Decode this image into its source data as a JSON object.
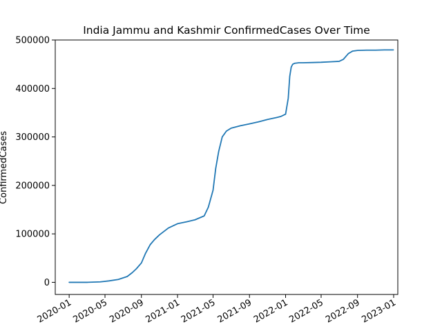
{
  "chart_data": {
    "type": "line",
    "title": "India Jammu and Kashmir ConfirmedCases Over Time",
    "xlabel": "",
    "ylabel": "ConfirmedCases",
    "x_range": [
      "2019-11-15",
      "2023-01-15"
    ],
    "ylim": [
      -25000,
      500000
    ],
    "x_ticks": [
      "2020-01",
      "2020-05",
      "2020-09",
      "2021-01",
      "2021-05",
      "2021-09",
      "2022-01",
      "2022-05",
      "2022-09",
      "2023-01"
    ],
    "y_ticks": [
      0,
      100000,
      200000,
      300000,
      400000,
      500000
    ],
    "y_tick_labels": [
      "0",
      "100000",
      "200000",
      "300000",
      "400000",
      "500000"
    ],
    "grid": false,
    "line_color": "#1f77b4",
    "series": [
      {
        "x": [
          "2020-01-01",
          "2020-03-01",
          "2020-04-15",
          "2020-05-15",
          "2020-06-15",
          "2020-07-15",
          "2020-08-01",
          "2020-08-15",
          "2020-09-01",
          "2020-09-15",
          "2020-10-01",
          "2020-10-15",
          "2020-11-01",
          "2020-12-01",
          "2021-01-01",
          "2021-02-01",
          "2021-03-01",
          "2021-04-01",
          "2021-04-15",
          "2021-05-01",
          "2021-05-10",
          "2021-05-20",
          "2021-06-01",
          "2021-06-15",
          "2021-07-01",
          "2021-08-01",
          "2021-09-01",
          "2021-10-01",
          "2021-11-01",
          "2021-12-01",
          "2021-12-15",
          "2022-01-01",
          "2022-01-10",
          "2022-01-15",
          "2022-01-20",
          "2022-01-25",
          "2022-02-01",
          "2022-02-15",
          "2022-03-01",
          "2022-04-01",
          "2022-05-01",
          "2022-06-01",
          "2022-07-01",
          "2022-07-15",
          "2022-08-01",
          "2022-08-15",
          "2022-09-01",
          "2022-10-01",
          "2022-11-01",
          "2022-12-01",
          "2022-12-31"
        ],
        "y": [
          0,
          0,
          1000,
          3000,
          6000,
          12000,
          20000,
          28000,
          40000,
          60000,
          78000,
          88000,
          98000,
          112000,
          121000,
          125000,
          129000,
          137000,
          155000,
          190000,
          235000,
          270000,
          300000,
          312000,
          318000,
          323000,
          327000,
          331000,
          336000,
          340000,
          342000,
          347000,
          380000,
          425000,
          444000,
          450000,
          452000,
          453000,
          453000,
          453500,
          454000,
          455000,
          456000,
          460000,
          472000,
          477000,
          478500,
          479000,
          479000,
          479500,
          479500
        ]
      }
    ]
  }
}
